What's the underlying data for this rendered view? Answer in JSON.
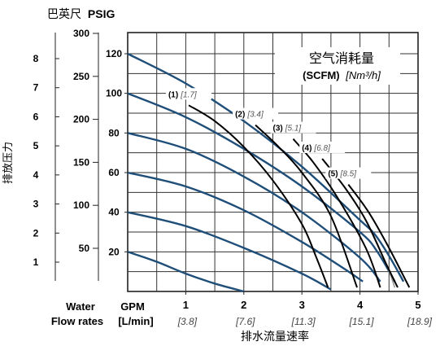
{
  "chart_data": {
    "type": "line",
    "title": "空气消耗量",
    "title_unit_bold": "(SCFM)",
    "title_unit_italic": "[Nm³/h]",
    "y_axis_title": "排放压力",
    "x_axis_title": "排水流量速率",
    "corner_label_cn": "巴英尺",
    "corner_label_unit": "PSIG",
    "water_label": "Water",
    "flow_rates_label": "Flow rates",
    "gpm_label": "GPM",
    "lmin_label": "[L/min]",
    "xlim": [
      0,
      5
    ],
    "ylim": [
      0,
      120
    ],
    "x_ticks": [
      1,
      2,
      3,
      4,
      5
    ],
    "x_ticks_lmin": [
      "[3.8]",
      "[7.6]",
      "[11.3]",
      "[15.1]",
      "[18.9]"
    ],
    "psig_ticks": [
      20,
      40,
      60,
      80,
      100,
      120
    ],
    "bar_ticks": [
      1,
      2,
      3,
      4,
      5,
      6,
      7,
      8
    ],
    "ft_ticks": [
      50,
      100,
      150,
      200,
      250,
      300
    ],
    "grid": true,
    "pressure_curves": [
      {
        "x": [
          0,
          1,
          2,
          3,
          4,
          4.25,
          4.5,
          4.75
        ],
        "y": [
          120,
          105,
          86,
          63,
          36,
          29,
          18,
          5
        ]
      },
      {
        "x": [
          0,
          1,
          2,
          3,
          4,
          4.3,
          4.6
        ],
        "y": [
          100,
          88,
          72,
          53,
          30,
          20,
          5
        ]
      },
      {
        "x": [
          0,
          1,
          2,
          3,
          4,
          4.35
        ],
        "y": [
          80,
          72,
          58,
          40,
          17,
          5
        ]
      },
      {
        "x": [
          0,
          1,
          2,
          3,
          3.7,
          4.05
        ],
        "y": [
          60,
          53,
          41,
          25,
          12,
          5
        ]
      },
      {
        "x": [
          0,
          1,
          2,
          3,
          3.5
        ],
        "y": [
          40,
          33,
          22,
          9,
          1
        ]
      },
      {
        "x": [
          0,
          0.5,
          1,
          1.5,
          2
        ],
        "y": [
          20,
          15,
          9,
          4,
          0
        ]
      }
    ],
    "air_consumption_curves": [
      {
        "label": "(1)",
        "label_alt": "[1.7]",
        "color": "#000000",
        "x": [
          1.05,
          1.5,
          2.0,
          2.5,
          3.0,
          3.25,
          3.45
        ],
        "y": [
          94,
          86,
          73,
          56,
          34,
          17,
          2
        ]
      },
      {
        "label": "(2)",
        "label_alt": "[3.4]",
        "color": "#000000",
        "x": [
          2.2,
          2.6,
          3.0,
          3.5,
          3.95
        ],
        "y": [
          84,
          73,
          60,
          38,
          2
        ]
      },
      {
        "label": "(3)",
        "label_alt": "[5.1]",
        "color": "#000000",
        "x": [
          2.85,
          3.2,
          3.6,
          4.1,
          4.35
        ],
        "y": [
          77,
          65,
          48,
          22,
          2
        ]
      },
      {
        "label": "(4)",
        "label_alt": "[6.8]",
        "color": "#999999",
        "x": [
          3.35,
          3.75,
          4.1,
          4.45,
          4.6
        ],
        "y": [
          67,
          52,
          36,
          14,
          2
        ]
      },
      {
        "label": "(4)",
        "label_alt": "[6.8]",
        "color": "#000000",
        "x": [
          3.35,
          3.75,
          4.1,
          4.45,
          4.65
        ],
        "y": [
          67,
          52,
          36,
          14,
          2
        ]
      },
      {
        "label": "(5)",
        "label_alt": "[8.5]",
        "color": "#000000",
        "x": [
          3.8,
          4.15,
          4.5,
          4.85
        ],
        "y": [
          54,
          40,
          22,
          2
        ]
      }
    ]
  }
}
